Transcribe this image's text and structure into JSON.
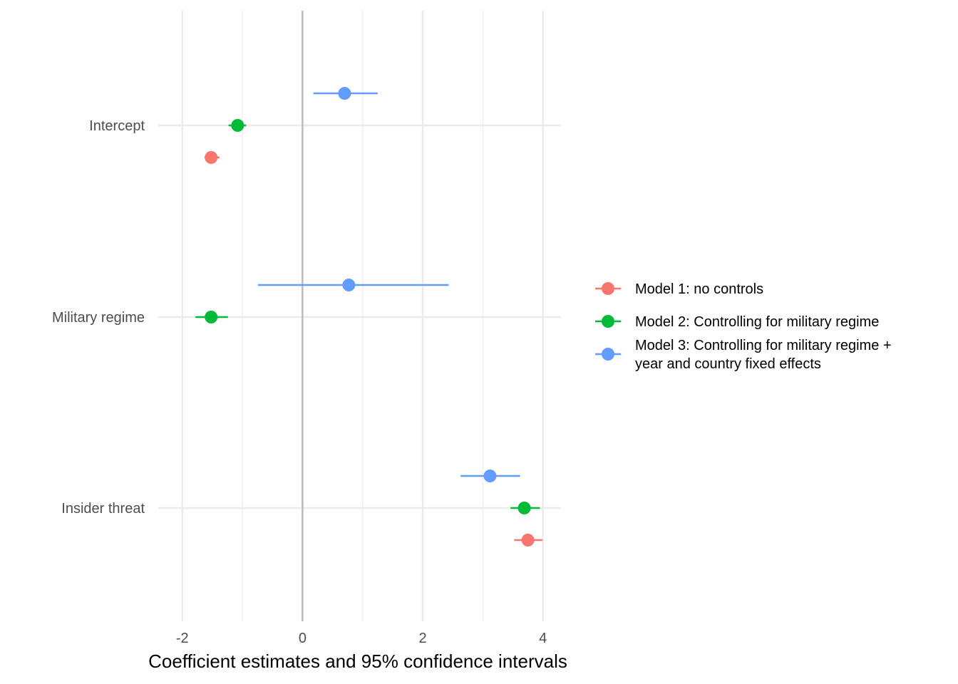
{
  "chart_data": {
    "type": "scatter",
    "title": "",
    "xlabel": "Coefficient estimates and 95% confidence intervals",
    "ylabel": "",
    "xlim": [
      -2.4,
      4.3
    ],
    "x_ticks": [
      "-2",
      "0",
      "2",
      "4"
    ],
    "x_tick_values": [
      -2,
      0,
      2,
      4
    ],
    "categories": [
      "Intercept",
      "Military regime",
      "Insider threat"
    ],
    "reference_line": 0,
    "grid": true,
    "legend_position": "right",
    "series": [
      {
        "name": "Model 1: no controls",
        "color": "#F8766D",
        "points": [
          {
            "term": "Intercept",
            "estimate": -1.52,
            "low": -1.63,
            "high": -1.38
          },
          {
            "term": "Insider threat",
            "estimate": 3.75,
            "low": 3.52,
            "high": 3.99
          }
        ]
      },
      {
        "name": "Model 2: Controlling for military regime",
        "color": "#00BA38",
        "points": [
          {
            "term": "Intercept",
            "estimate": -1.08,
            "low": -1.23,
            "high": -0.94
          },
          {
            "term": "Military regime",
            "estimate": -1.52,
            "low": -1.78,
            "high": -1.24
          },
          {
            "term": "Insider threat",
            "estimate": 3.69,
            "low": 3.46,
            "high": 3.95
          }
        ]
      },
      {
        "name": "Model 3: Controlling for military regime + year and country fixed effects",
        "name_lines": [
          "Model 3: Controlling for military regime +",
          "year and country fixed effects"
        ],
        "color": "#619CFF",
        "points": [
          {
            "term": "Intercept",
            "estimate": 0.7,
            "low": 0.18,
            "high": 1.25
          },
          {
            "term": "Military regime",
            "estimate": 0.77,
            "low": -0.74,
            "high": 2.43
          },
          {
            "term": "Insider threat",
            "estimate": 3.12,
            "low": 2.63,
            "high": 3.62
          }
        ]
      }
    ]
  }
}
